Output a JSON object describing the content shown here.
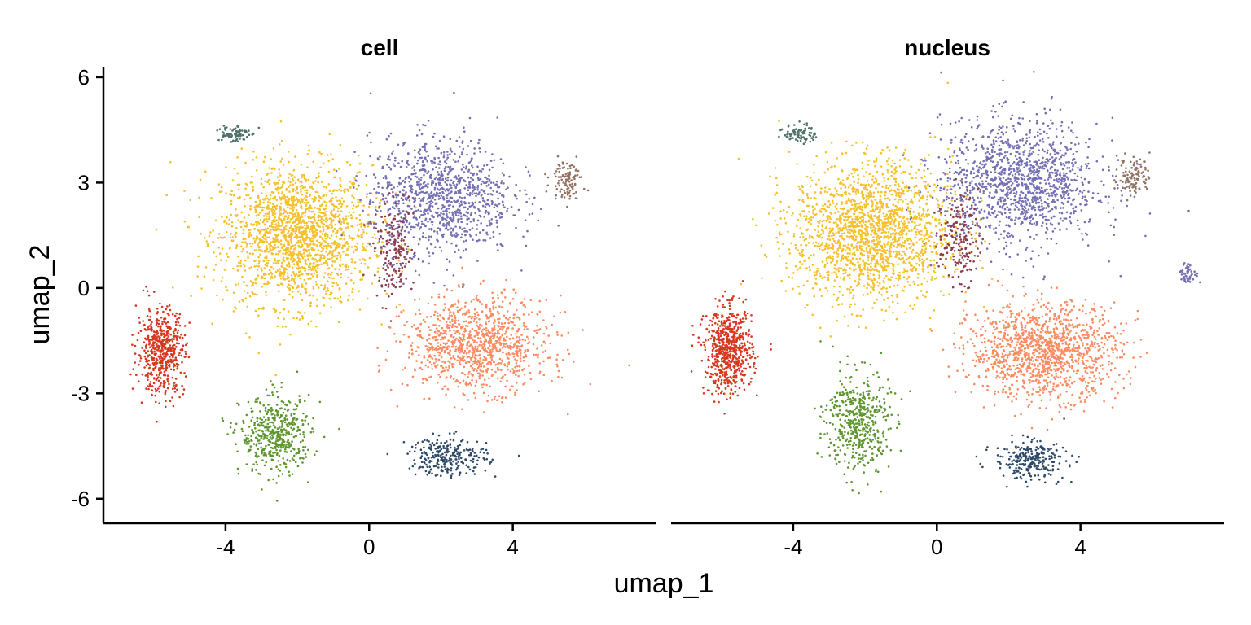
{
  "chart_data": {
    "type": "scatter",
    "xlabel": "umap_1",
    "ylabel": "umap_2",
    "xlim": [
      -7.4,
      8.0
    ],
    "ylim": [
      -6.7,
      6.3
    ],
    "xticks": [
      -4,
      0,
      4
    ],
    "yticks": [
      6,
      3,
      0,
      -3,
      -6
    ],
    "xtick_labels": [
      "-4",
      "0",
      "4"
    ],
    "ytick_labels": [
      "6",
      "3",
      "0",
      "-3",
      "-6"
    ],
    "grid": false,
    "legend": "none",
    "panels": [
      {
        "title": "cell",
        "clusters": [
          {
            "color": "#F5C12E",
            "center": [
              -2.0,
              1.5
            ],
            "spread": [
              1.9,
              1.8
            ],
            "weight": 7
          },
          {
            "color": "#7570B3",
            "center": [
              2.0,
              2.6
            ],
            "spread": [
              1.8,
              1.5
            ],
            "weight": 4
          },
          {
            "color": "#FA8C62",
            "center": [
              3.0,
              -1.6
            ],
            "spread": [
              1.8,
              1.2
            ],
            "weight": 4
          },
          {
            "color": "#D6381F",
            "center": [
              -5.8,
              -1.8
            ],
            "spread": [
              0.6,
              1.1
            ],
            "weight": 2
          },
          {
            "color": "#5E9630",
            "center": [
              -2.6,
              -4.2
            ],
            "spread": [
              0.9,
              1.0
            ],
            "weight": 1.8
          },
          {
            "color": "#2E4A68",
            "center": [
              2.2,
              -4.8
            ],
            "spread": [
              1.0,
              0.5
            ],
            "weight": 1
          },
          {
            "color": "#8C3A4C",
            "center": [
              0.7,
              1.0
            ],
            "spread": [
              0.5,
              1.2
            ],
            "weight": 0.7
          },
          {
            "color": "#927263",
            "center": [
              5.5,
              3.1
            ],
            "spread": [
              0.4,
              0.5
            ],
            "weight": 0.4
          },
          {
            "color": "#4F7268",
            "center": [
              -3.8,
              4.4
            ],
            "spread": [
              0.4,
              0.25
            ],
            "weight": 0.3
          }
        ]
      },
      {
        "title": "nucleus",
        "clusters": [
          {
            "color": "#F5C12E",
            "center": [
              -1.8,
              1.6
            ],
            "spread": [
              2.0,
              1.8
            ],
            "weight": 7
          },
          {
            "color": "#7570B3",
            "center": [
              2.3,
              3.0
            ],
            "spread": [
              2.0,
              1.6
            ],
            "weight": 5
          },
          {
            "color": "#FA8C62",
            "center": [
              3.0,
              -1.8
            ],
            "spread": [
              1.9,
              1.2
            ],
            "weight": 5
          },
          {
            "color": "#D6381F",
            "center": [
              -5.8,
              -1.8
            ],
            "spread": [
              0.6,
              1.1
            ],
            "weight": 2.5
          },
          {
            "color": "#5E9630",
            "center": [
              -2.2,
              -3.8
            ],
            "spread": [
              0.8,
              1.3
            ],
            "weight": 1.8
          },
          {
            "color": "#2E4A68",
            "center": [
              2.6,
              -4.9
            ],
            "spread": [
              0.9,
              0.5
            ],
            "weight": 1
          },
          {
            "color": "#8C3A4C",
            "center": [
              0.6,
              1.4
            ],
            "spread": [
              0.5,
              1.2
            ],
            "weight": 0.7
          },
          {
            "color": "#927263",
            "center": [
              5.5,
              3.2
            ],
            "spread": [
              0.4,
              0.5
            ],
            "weight": 0.4
          },
          {
            "color": "#4F7268",
            "center": [
              -3.8,
              4.4
            ],
            "spread": [
              0.4,
              0.25
            ],
            "weight": 0.3
          },
          {
            "color": "#7570B3",
            "center": [
              7.0,
              0.4
            ],
            "spread": [
              0.25,
              0.25
            ],
            "weight": 0.2
          }
        ]
      }
    ]
  }
}
